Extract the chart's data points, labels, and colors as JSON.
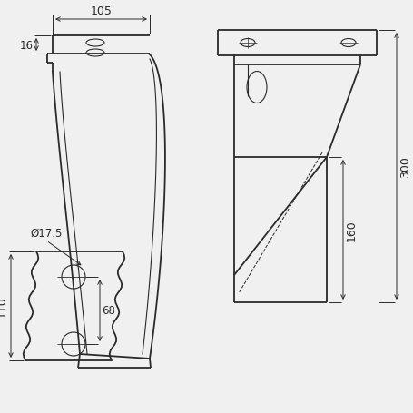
{
  "bg_color": "#f0f0f0",
  "line_color": "#2a2a2a",
  "lw_main": 1.3,
  "lw_thin": 0.8,
  "lw_dim": 0.7,
  "figsize": [
    4.56,
    4.56
  ],
  "dpi": 100,
  "annotations": {
    "dim_105": "105",
    "dim_16": "16",
    "dim_300": "300",
    "dim_160": "160",
    "dim_110": "110",
    "dim_68": "68",
    "dim_hole": "Ø17.5"
  }
}
